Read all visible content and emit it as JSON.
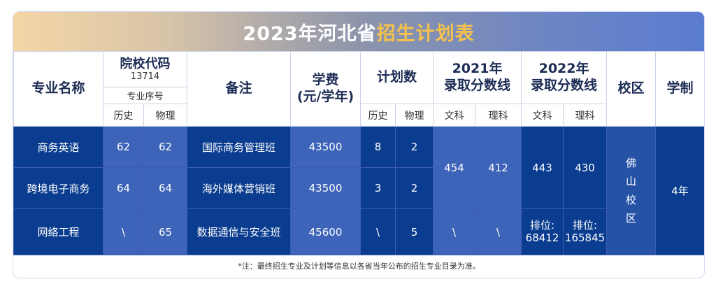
{
  "title": {
    "prefix": "2023年河北省",
    "highlight": "招生计划表"
  },
  "header": {
    "major_name": "专业名称",
    "school_code_label": "院校代码",
    "school_code": "13714",
    "major_seq": "专业序号",
    "history": "历史",
    "physics": "物理",
    "remark": "备注",
    "tuition_line1": "学费",
    "tuition_line2": "(元/学年)",
    "plan_count": "计划数",
    "score2021_line1": "2021年",
    "score2021_line2": "录取分数线",
    "score2022_line1": "2022年",
    "score2022_line2": "录取分数线",
    "arts": "文科",
    "science": "理科",
    "campus": "校区",
    "duration": "学制"
  },
  "rows": [
    {
      "name": "商务英语",
      "seq_history": "62",
      "seq_physics": "62",
      "remark": "国际商务管理班",
      "tuition": "43500",
      "plan_history": "8",
      "plan_physics": "2"
    },
    {
      "name": "跨境电子商务",
      "seq_history": "64",
      "seq_physics": "64",
      "remark": "海外媒体营销班",
      "tuition": "43500",
      "plan_history": "3",
      "plan_physics": "2"
    },
    {
      "name": "网络工程",
      "seq_history": "\\",
      "seq_physics": "65",
      "remark": "数据通信与安全班",
      "tuition": "45600",
      "plan_history": "\\",
      "plan_physics": "5"
    }
  ],
  "scores_2021": {
    "arts": "454",
    "science": "412",
    "arts_rank": "\\",
    "science_rank": "\\"
  },
  "scores_2022": {
    "arts": "443",
    "science": "430",
    "arts_rank_label": "排位:",
    "arts_rank": "68412",
    "science_rank_label": "排位:",
    "science_rank": "165845"
  },
  "campus": [
    "佛",
    "山",
    "校",
    "区"
  ],
  "duration": "4年",
  "footnote": "*注：最终招生专业及计划等信息以各省当年公布的招生专业目录为准。"
}
